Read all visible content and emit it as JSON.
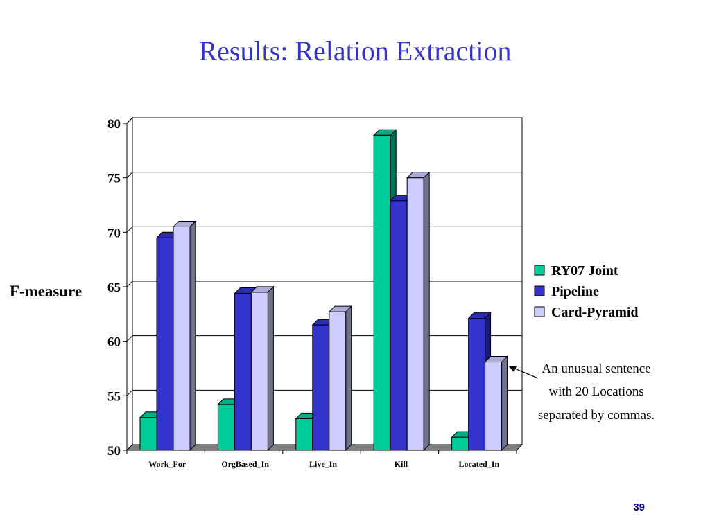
{
  "slide": {
    "title": "Results: Relation Extraction",
    "page_number": "39",
    "annotation": [
      "An unusual sentence",
      "with 20 Locations",
      "separated by commas."
    ]
  },
  "chart_data": {
    "type": "bar",
    "ylabel": "F-measure",
    "xlabel": "",
    "ylim": [
      50,
      80
    ],
    "yticks": [
      50,
      55,
      60,
      65,
      70,
      75,
      80
    ],
    "grid": true,
    "legend_position": "right",
    "categories": [
      "Work_For",
      "OrgBased_In",
      "Live_In",
      "Kill",
      "Located_In"
    ],
    "series": [
      {
        "name": "RY07 Joint",
        "color": "#00cc99",
        "values": [
          53.0,
          54.2,
          52.9,
          78.9,
          51.2
        ]
      },
      {
        "name": "Pipeline",
        "color": "#3333cc",
        "values": [
          69.5,
          64.4,
          61.5,
          72.9,
          62.1
        ]
      },
      {
        "name": "Card-Pyramid",
        "color": "#ccccff",
        "values": [
          70.5,
          64.5,
          62.7,
          75.0,
          58.1
        ]
      }
    ]
  }
}
